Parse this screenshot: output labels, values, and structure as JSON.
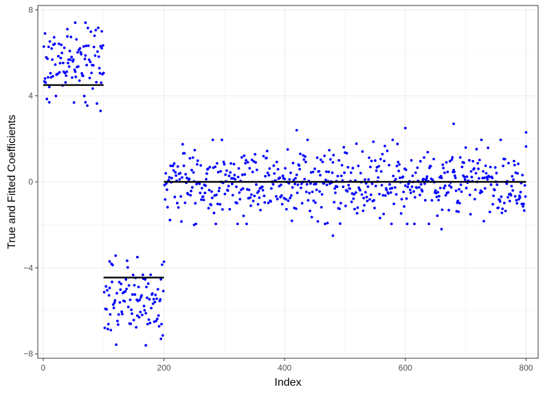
{
  "chart_data": {
    "type": "scatter",
    "title": "",
    "xlabel": "Index",
    "ylabel": "True and Fitted Coefficients",
    "xlim": [
      -9,
      820
    ],
    "ylim": [
      -8.2,
      8.2
    ],
    "x_ticks": [
      0,
      200,
      400,
      600,
      800
    ],
    "x_tick_labels": [
      "0",
      "200",
      "400",
      "600",
      "800"
    ],
    "y_ticks": [
      -8,
      -4,
      0,
      4,
      8
    ],
    "y_tick_labels": [
      "−8",
      "−4",
      "0",
      "4",
      "8"
    ],
    "grid": true,
    "legend": "none",
    "point_color": "#0000ff",
    "line_color": "#000000",
    "series": [
      {
        "kind": "points",
        "groups": [
          {
            "x_start": 1,
            "x_end": 100,
            "center": 5.5,
            "spread": 0.85
          },
          {
            "x_start": 101,
            "x_end": 200,
            "center": -5.5,
            "spread": 0.9
          },
          {
            "x_start": 201,
            "x_end": 800,
            "center": 0.0,
            "spread": 0.85
          }
        ],
        "sample_points": [
          [
            53,
            7.4
          ],
          [
            70,
            7.4
          ],
          [
            40,
            7.1
          ],
          [
            97,
            7.0
          ],
          [
            3,
            6.9
          ],
          [
            10,
            3.7
          ],
          [
            70,
            3.7
          ],
          [
            95,
            3.3
          ],
          [
            156,
            -3.5
          ],
          [
            110,
            -3.7
          ],
          [
            170,
            -7.6
          ],
          [
            195,
            -7.3
          ],
          [
            680,
            2.7
          ],
          [
            600,
            2.5
          ],
          [
            420,
            2.4
          ],
          [
            800,
            2.3
          ],
          [
            480,
            -2.5
          ],
          [
            660,
            -2.2
          ],
          [
            250,
            -2.0
          ]
        ]
      },
      {
        "kind": "fitted-segments",
        "segments": [
          {
            "x_start": 0,
            "x_end": 100,
            "y": 4.5
          },
          {
            "x_start": 100,
            "x_end": 200,
            "y": -4.45
          },
          {
            "x_start": 200,
            "x_end": 800,
            "y": 0.0
          }
        ]
      }
    ]
  }
}
